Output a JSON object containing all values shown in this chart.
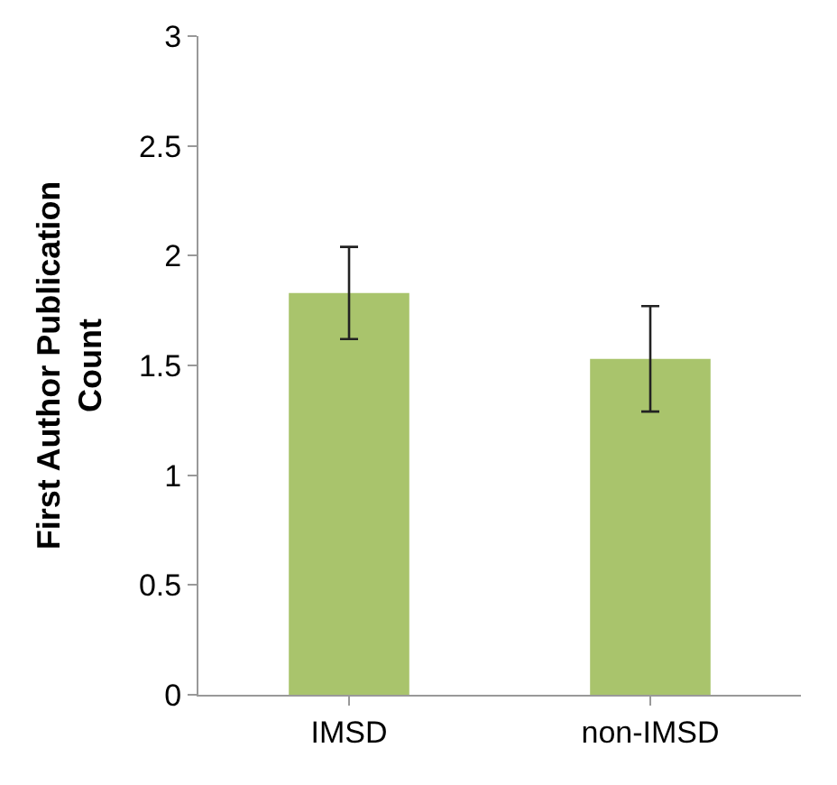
{
  "chart_data": {
    "type": "bar",
    "ylabel": "First Author Publication Count",
    "categories": [
      "IMSD",
      "non-IMSD"
    ],
    "series": [
      {
        "color": "#a9c46c",
        "values": [
          1.83,
          1.53
        ],
        "errors": [
          [
            1.62,
            2.04
          ],
          [
            1.29,
            1.77
          ]
        ]
      }
    ],
    "ylim": [
      0,
      3
    ],
    "yticks": [
      0,
      0.5,
      1,
      1.5,
      2,
      2.5,
      3
    ]
  }
}
